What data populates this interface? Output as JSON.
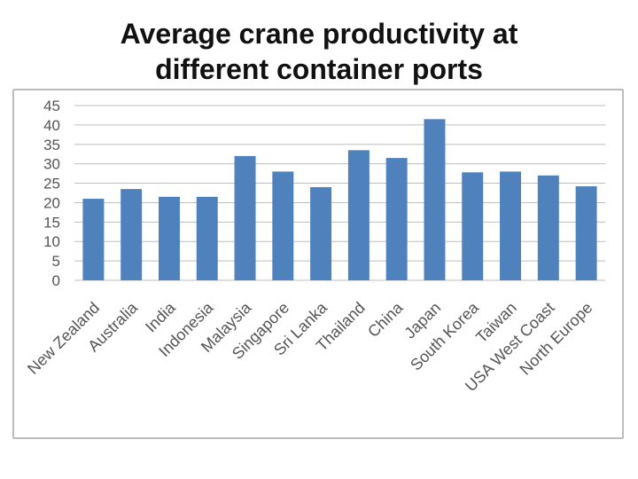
{
  "title": "Average crane productivity at different container ports",
  "title_lines": [
    "Average crane productivity at",
    "different container ports"
  ],
  "colors": {
    "bar": "#4f81bd",
    "grid": "#bfbfbf",
    "axis_text": "#555555"
  },
  "chart_data": {
    "type": "bar",
    "title": "Average crane productivity at different container ports",
    "xlabel": "",
    "ylabel": "",
    "ylim": [
      0,
      45
    ],
    "yticks": [
      0,
      5,
      10,
      15,
      20,
      25,
      30,
      35,
      40,
      45
    ],
    "grid": true,
    "legend": "none",
    "categories": [
      "New Zealand",
      "Australia",
      "India",
      "Indonesia",
      "Malaysia",
      "Singapore",
      "Sri Lanka",
      "Thailand",
      "China",
      "Japan",
      "South Korea",
      "Taiwan",
      "USA West Coast",
      "North Europe"
    ],
    "values": [
      21,
      23.5,
      21.5,
      21.5,
      32,
      28,
      24,
      33.5,
      31.5,
      41.5,
      27.8,
      28,
      27,
      24.2
    ]
  }
}
